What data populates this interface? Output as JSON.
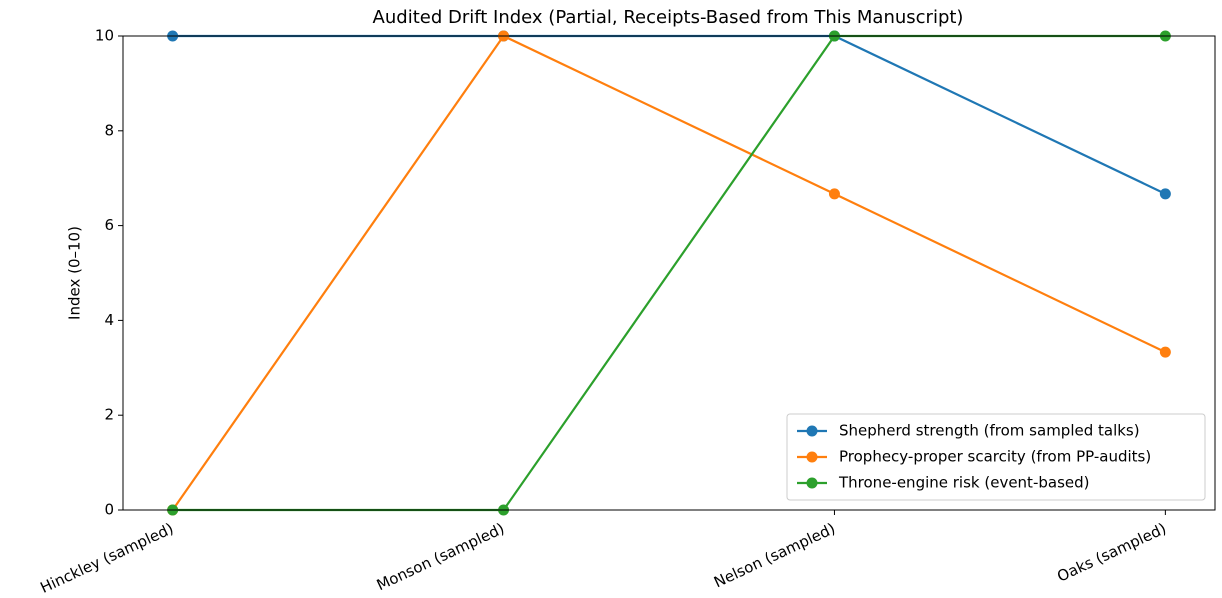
{
  "chart_data": {
    "type": "line",
    "title": "Audited Drift Index (Partial, Receipts-Based from This Manuscript)",
    "ylabel": "Index (0–10)",
    "categories": [
      "Hinckley (sampled)",
      "Monson (sampled)",
      "Nelson (sampled)",
      "Oaks (sampled)"
    ],
    "series": [
      {
        "name": "Shepherd strength (from sampled talks)",
        "color": "#1f77b4",
        "values": [
          10,
          10,
          10,
          6.67
        ]
      },
      {
        "name": "Prophecy-proper scarcity (from PP-audits)",
        "color": "#ff7f0e",
        "values": [
          0,
          10,
          6.67,
          3.33
        ]
      },
      {
        "name": "Throne-engine risk (event-based)",
        "color": "#2ca02c",
        "values": [
          0,
          0,
          10,
          10
        ]
      }
    ],
    "ylim": [
      0,
      10
    ],
    "yticks": [
      0,
      2,
      4,
      6,
      8,
      10
    ],
    "legend": "lower right",
    "grid": false
  }
}
